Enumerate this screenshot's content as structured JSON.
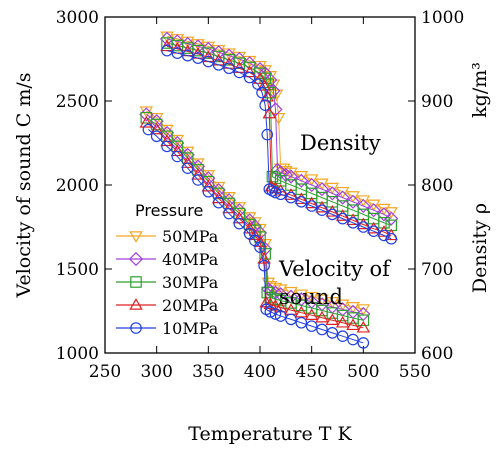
{
  "chart_data": {
    "type": "line",
    "xlabel": "Temperature T K",
    "ylabel": "Velocity of sound C m/s",
    "y2label": "Density ρ",
    "y2unit": "kg/m³",
    "xlim": [
      250,
      550
    ],
    "ylim": [
      1000,
      3000
    ],
    "y2lim": [
      600,
      1000
    ],
    "xticks": [
      250,
      300,
      350,
      400,
      450,
      500,
      550
    ],
    "yticks": [
      1000,
      1500,
      2000,
      2500,
      3000
    ],
    "y2ticks": [
      600,
      700,
      800,
      900,
      1000
    ],
    "grid": false,
    "annotations": {
      "density": "Density",
      "velocity_line1": "Velocity of",
      "velocity_line2": "sound"
    },
    "legend": {
      "title": "Pressure",
      "placement": "center-left"
    },
    "series": [
      {
        "name": "50MPa",
        "color": "#F5A623",
        "marker": "triangle-down",
        "velocity": {
          "x": [
            290,
            300,
            310,
            320,
            330,
            340,
            350,
            360,
            370,
            380,
            390,
            395,
            400,
            405,
            408,
            410,
            415,
            420,
            430,
            440,
            450,
            460,
            470,
            480,
            490,
            500
          ],
          "y": [
            2440,
            2400,
            2330,
            2270,
            2200,
            2130,
            2060,
            1990,
            1930,
            1870,
            1810,
            1780,
            1740,
            1650,
            1420,
            1400,
            1390,
            1380,
            1365,
            1350,
            1335,
            1320,
            1305,
            1290,
            1275,
            1262
          ]
        },
        "density": {
          "x": [
            310,
            320,
            330,
            340,
            350,
            360,
            370,
            380,
            390,
            400,
            405,
            410,
            413,
            416,
            418,
            420,
            423,
            425,
            430,
            440,
            450,
            460,
            470,
            480,
            490,
            500,
            510,
            520,
            527
          ],
          "y": [
            977,
            974,
            971,
            968,
            965,
            961,
            957,
            953,
            948,
            942,
            937,
            930,
            920,
            908,
            880,
            820,
            820,
            817,
            815,
            811,
            807,
            802,
            797,
            792,
            787,
            782,
            777,
            772,
            768
          ]
        }
      },
      {
        "name": "40MPa",
        "color": "#A040E0",
        "marker": "diamond",
        "velocity": {
          "x": [
            290,
            300,
            310,
            320,
            330,
            340,
            350,
            360,
            370,
            380,
            390,
            395,
            400,
            405,
            408,
            410,
            415,
            420,
            430,
            440,
            450,
            460,
            470,
            480,
            490,
            500
          ],
          "y": [
            2420,
            2380,
            2310,
            2250,
            2180,
            2110,
            2040,
            1970,
            1910,
            1850,
            1790,
            1755,
            1715,
            1620,
            1380,
            1370,
            1360,
            1350,
            1335,
            1320,
            1305,
            1290,
            1275,
            1260,
            1245,
            1232
          ]
        },
        "density": {
          "x": [
            310,
            320,
            330,
            340,
            350,
            360,
            370,
            380,
            390,
            400,
            405,
            410,
            413,
            415,
            417,
            420,
            425,
            430,
            440,
            450,
            460,
            470,
            480,
            490,
            500,
            510,
            520,
            527
          ],
          "y": [
            974,
            971,
            968,
            965,
            962,
            958,
            954,
            950,
            945,
            938,
            933,
            925,
            912,
            890,
            818,
            815,
            812,
            810,
            805,
            800,
            795,
            790,
            785,
            780,
            775,
            770,
            765,
            760
          ]
        }
      },
      {
        "name": "30MPa",
        "color": "#2EA02E",
        "marker": "square",
        "velocity": {
          "x": [
            290,
            300,
            310,
            320,
            330,
            340,
            350,
            360,
            370,
            380,
            390,
            395,
            400,
            405,
            407,
            410,
            415,
            420,
            430,
            440,
            450,
            460,
            470,
            480,
            490,
            500
          ],
          "y": [
            2400,
            2360,
            2290,
            2230,
            2160,
            2090,
            2020,
            1950,
            1890,
            1830,
            1765,
            1730,
            1690,
            1590,
            1360,
            1330,
            1320,
            1312,
            1298,
            1283,
            1268,
            1253,
            1238,
            1223,
            1208,
            1195
          ]
        },
        "density": {
          "x": [
            310,
            320,
            330,
            340,
            350,
            360,
            370,
            380,
            390,
            400,
            405,
            408,
            410,
            412,
            415,
            420,
            430,
            440,
            450,
            460,
            470,
            480,
            490,
            500,
            510,
            520,
            527
          ],
          "y": [
            969,
            966,
            963,
            960,
            957,
            953,
            949,
            945,
            940,
            933,
            927,
            920,
            910,
            810,
            808,
            805,
            800,
            795,
            790,
            785,
            780,
            775,
            770,
            765,
            760,
            755,
            752
          ]
        }
      },
      {
        "name": "20MPa",
        "color": "#E02020",
        "marker": "triangle-up",
        "velocity": {
          "x": [
            290,
            300,
            310,
            320,
            330,
            340,
            350,
            360,
            370,
            380,
            390,
            395,
            400,
            404,
            406,
            410,
            415,
            420,
            430,
            440,
            450,
            460,
            470,
            480,
            490,
            500
          ],
          "y": [
            2370,
            2330,
            2260,
            2200,
            2130,
            2060,
            1990,
            1920,
            1860,
            1800,
            1740,
            1700,
            1660,
            1560,
            1300,
            1290,
            1280,
            1270,
            1255,
            1240,
            1225,
            1210,
            1195,
            1180,
            1165,
            1150
          ]
        },
        "density": {
          "x": [
            310,
            320,
            330,
            340,
            350,
            360,
            370,
            380,
            390,
            400,
            404,
            407,
            409,
            411,
            415,
            420,
            430,
            440,
            450,
            460,
            470,
            480,
            490,
            500,
            510,
            520,
            527
          ],
          "y": [
            965,
            962,
            959,
            956,
            952,
            948,
            944,
            939,
            934,
            926,
            918,
            905,
            885,
            798,
            796,
            793,
            788,
            783,
            778,
            773,
            768,
            763,
            758,
            753,
            748,
            744,
            740
          ]
        }
      },
      {
        "name": "10MPa",
        "color": "#2040E0",
        "marker": "circle",
        "velocity": {
          "x": [
            292,
            300,
            310,
            320,
            330,
            340,
            350,
            360,
            370,
            380,
            390,
            395,
            400,
            404,
            406,
            410,
            415,
            420,
            430,
            440,
            450,
            460,
            470,
            480,
            490,
            500
          ],
          "y": [
            2330,
            2290,
            2230,
            2170,
            2100,
            2030,
            1960,
            1895,
            1830,
            1770,
            1710,
            1670,
            1630,
            1520,
            1260,
            1245,
            1232,
            1220,
            1200,
            1180,
            1160,
            1140,
            1120,
            1100,
            1080,
            1060
          ]
        },
        "density": {
          "x": [
            310,
            320,
            330,
            340,
            350,
            360,
            370,
            380,
            390,
            398,
            402,
            405,
            407,
            409,
            412,
            415,
            420,
            430,
            440,
            450,
            460,
            470,
            480,
            490,
            500,
            510,
            520,
            527
          ],
          "y": [
            960,
            957,
            954,
            951,
            947,
            943,
            939,
            934,
            928,
            920,
            910,
            895,
            860,
            795,
            793,
            791,
            789,
            785,
            780,
            775,
            770,
            765,
            760,
            755,
            750,
            745,
            740,
            736
          ]
        }
      }
    ]
  }
}
